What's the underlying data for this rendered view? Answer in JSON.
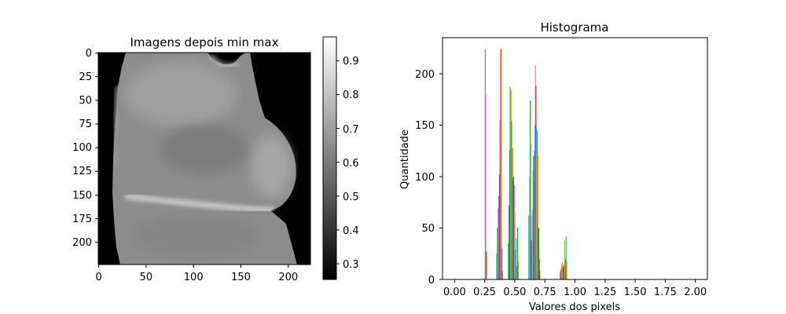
{
  "chart_data": [
    {
      "type": "heatmap",
      "title": "Imagens depois min max",
      "colormap": "gray",
      "x_ticks": [
        "0",
        "50",
        "100",
        "150",
        "200"
      ],
      "y_ticks": [
        "0",
        "25",
        "50",
        "75",
        "100",
        "125",
        "150",
        "175",
        "200"
      ],
      "xlim": [
        0,
        224
      ],
      "ylim": [
        224,
        0
      ],
      "colorbar": {
        "ticks": [
          "0.3",
          "0.4",
          "0.5",
          "0.6",
          "0.7",
          "0.8",
          "0.9"
        ],
        "range": [
          0.26,
          0.97
        ]
      }
    },
    {
      "type": "bar",
      "title": "Histograma",
      "xlabel": "Valores dos pixels",
      "ylabel": "Quantidade",
      "xlim": [
        -0.1,
        2.1
      ],
      "ylim": [
        0,
        235
      ],
      "x_ticks": [
        "0.00",
        "0.25",
        "0.50",
        "0.75",
        "1.00",
        "1.25",
        "1.50",
        "1.75",
        "2.00"
      ],
      "y_ticks": [
        "0",
        "50",
        "100",
        "150",
        "200"
      ],
      "series_colors": [
        "#1f77b4",
        "#ff7f0e",
        "#2ca02c",
        "#d62728",
        "#9467bd",
        "#8c564b",
        "#e377c2",
        "#7f7f7f",
        "#bcbd22",
        "#17becf"
      ],
      "bars": [
        {
          "x": 0.255,
          "y": 224,
          "color": "#7f7f7f"
        },
        {
          "x": 0.259,
          "y": 180,
          "color": "#e377c2"
        },
        {
          "x": 0.263,
          "y": 27,
          "color": "#d62728"
        },
        {
          "x": 0.35,
          "y": 25,
          "color": "#17becf"
        },
        {
          "x": 0.356,
          "y": 50,
          "color": "#2ca02c"
        },
        {
          "x": 0.362,
          "y": 69,
          "color": "#ff7f0e"
        },
        {
          "x": 0.368,
          "y": 81,
          "color": "#9467bd"
        },
        {
          "x": 0.373,
          "y": 102,
          "color": "#1f77b4"
        },
        {
          "x": 0.378,
          "y": 155,
          "color": "#d62728"
        },
        {
          "x": 0.382,
          "y": 224,
          "color": "#e377c2"
        },
        {
          "x": 0.386,
          "y": 224,
          "color": "#8c564b"
        },
        {
          "x": 0.39,
          "y": 224,
          "color": "#bcbd22"
        },
        {
          "x": 0.394,
          "y": 30,
          "color": "#7f7f7f"
        },
        {
          "x": 0.398,
          "y": 8,
          "color": "#1f77b4"
        },
        {
          "x": 0.448,
          "y": 35,
          "color": "#2ca02c"
        },
        {
          "x": 0.453,
          "y": 72,
          "color": "#d62728"
        },
        {
          "x": 0.458,
          "y": 126,
          "color": "#1f77b4"
        },
        {
          "x": 0.462,
          "y": 187,
          "color": "#2ca02c"
        },
        {
          "x": 0.466,
          "y": 155,
          "color": "#17becf"
        },
        {
          "x": 0.47,
          "y": 184,
          "color": "#bcbd22"
        },
        {
          "x": 0.474,
          "y": 154,
          "color": "#2ca02c"
        },
        {
          "x": 0.478,
          "y": 120,
          "color": "#9467bd"
        },
        {
          "x": 0.482,
          "y": 128,
          "color": "#ff7f0e"
        },
        {
          "x": 0.486,
          "y": 97,
          "color": "#1f77b4"
        },
        {
          "x": 0.49,
          "y": 100,
          "color": "#d62728"
        },
        {
          "x": 0.494,
          "y": 91,
          "color": "#8c564b"
        },
        {
          "x": 0.498,
          "y": 92,
          "color": "#e377c2"
        },
        {
          "x": 0.502,
          "y": 66,
          "color": "#bcbd22"
        },
        {
          "x": 0.506,
          "y": 29,
          "color": "#7f7f7f"
        },
        {
          "x": 0.512,
          "y": 40,
          "color": "#17becf"
        },
        {
          "x": 0.517,
          "y": 13,
          "color": "#9467bd"
        },
        {
          "x": 0.524,
          "y": 50,
          "color": "#2ca02c"
        },
        {
          "x": 0.53,
          "y": 17,
          "color": "#ff7f0e"
        },
        {
          "x": 0.618,
          "y": 62,
          "color": "#1f77b4"
        },
        {
          "x": 0.623,
          "y": 100,
          "color": "#bcbd22"
        },
        {
          "x": 0.628,
          "y": 174,
          "color": "#2ca02c"
        },
        {
          "x": 0.632,
          "y": 132,
          "color": "#17becf"
        },
        {
          "x": 0.636,
          "y": 38,
          "color": "#d62728"
        },
        {
          "x": 0.64,
          "y": 38,
          "color": "#7f7f7f"
        },
        {
          "x": 0.644,
          "y": 62,
          "color": "#9467bd"
        },
        {
          "x": 0.648,
          "y": 68,
          "color": "#ff7f0e"
        },
        {
          "x": 0.652,
          "y": 107,
          "color": "#bcbd22"
        },
        {
          "x": 0.656,
          "y": 120,
          "color": "#2ca02c"
        },
        {
          "x": 0.66,
          "y": 95,
          "color": "#8c564b"
        },
        {
          "x": 0.664,
          "y": 125,
          "color": "#1f77b4"
        },
        {
          "x": 0.668,
          "y": 150,
          "color": "#9467bd"
        },
        {
          "x": 0.672,
          "y": 208,
          "color": "#e377c2"
        },
        {
          "x": 0.676,
          "y": 188,
          "color": "#d62728"
        },
        {
          "x": 0.68,
          "y": 148,
          "color": "#17becf"
        },
        {
          "x": 0.684,
          "y": 122,
          "color": "#bcbd22"
        },
        {
          "x": 0.688,
          "y": 145,
          "color": "#7f7f7f"
        },
        {
          "x": 0.692,
          "y": 120,
          "color": "#ff7f0e"
        },
        {
          "x": 0.696,
          "y": 50,
          "color": "#2ca02c"
        },
        {
          "x": 0.7,
          "y": 50,
          "color": "#d62728"
        },
        {
          "x": 0.704,
          "y": 20,
          "color": "#1f77b4"
        },
        {
          "x": 0.708,
          "y": 8,
          "color": "#8c564b"
        },
        {
          "x": 0.878,
          "y": 8,
          "color": "#1f77b4"
        },
        {
          "x": 0.884,
          "y": 10,
          "color": "#9467bd"
        },
        {
          "x": 0.89,
          "y": 15,
          "color": "#ff7f0e"
        },
        {
          "x": 0.896,
          "y": 17,
          "color": "#e377c2"
        },
        {
          "x": 0.902,
          "y": 12,
          "color": "#d62728"
        },
        {
          "x": 0.908,
          "y": 14,
          "color": "#8c564b"
        },
        {
          "x": 0.914,
          "y": 38,
          "color": "#bcbd22"
        },
        {
          "x": 0.92,
          "y": 20,
          "color": "#2ca02c"
        },
        {
          "x": 0.926,
          "y": 42,
          "color": "#17becf"
        },
        {
          "x": 0.932,
          "y": 18,
          "color": "#ff7f0e"
        }
      ]
    }
  ]
}
